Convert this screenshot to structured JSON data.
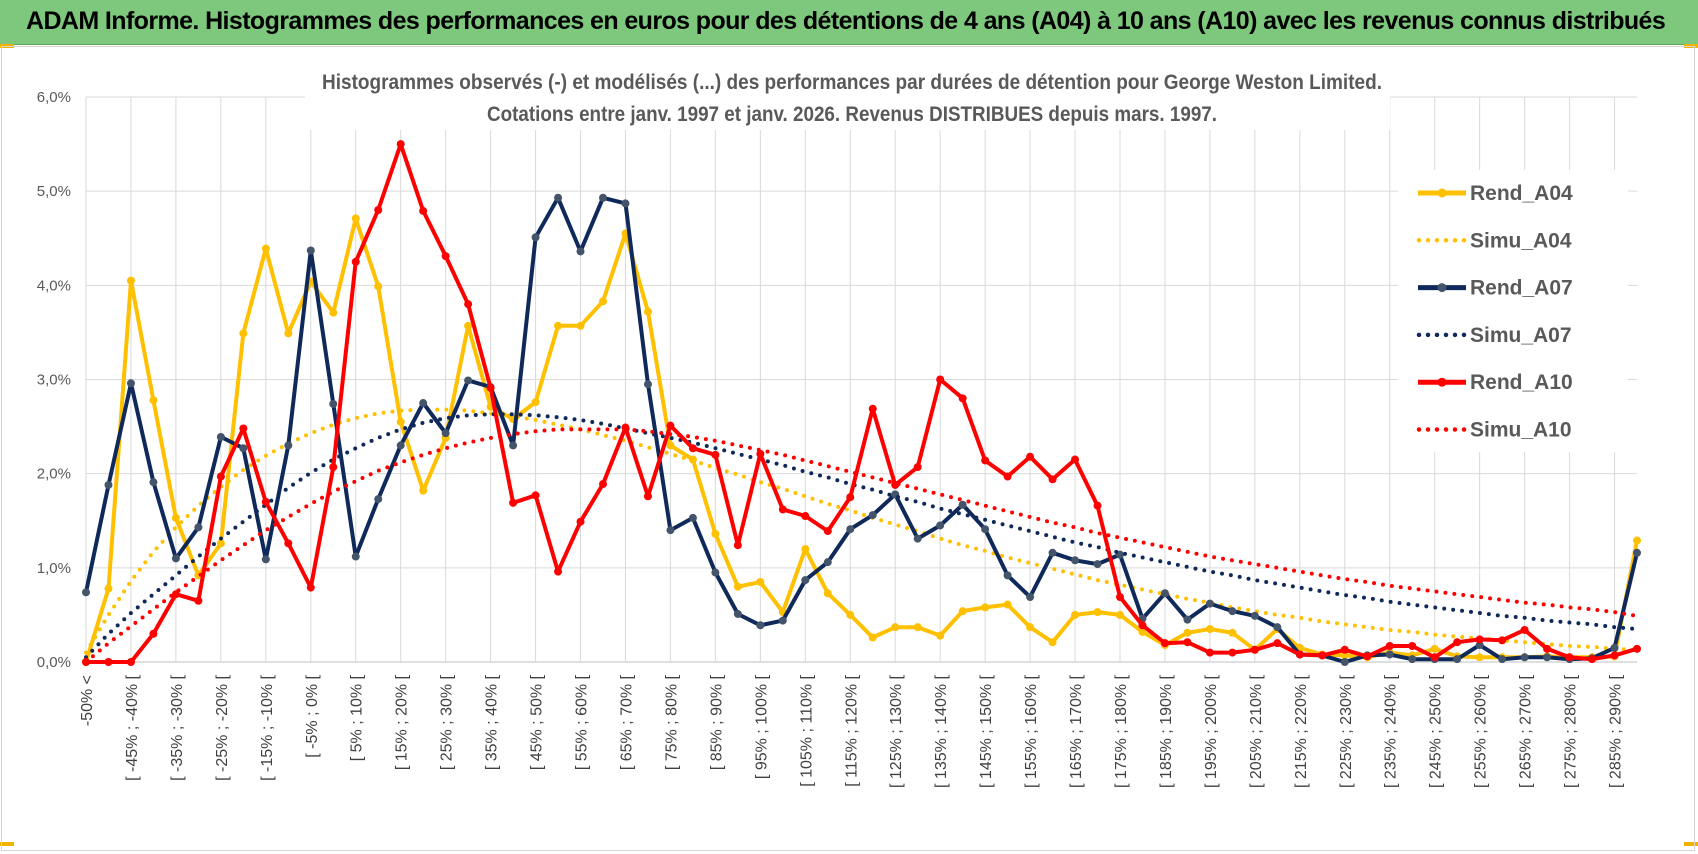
{
  "header": {
    "title": "ADAM Informe. Histogrammes des performances en euros pour des détentions de 4 ans (A04) à 10 ans (A10) avec les revenus connus distribués"
  },
  "chart_data": {
    "type": "line",
    "title": [
      "Histogrammes observés (-) et modélisés (...) des performances par durées de détention pour George Weston Limited.",
      "Cotations entre janv. 1997 et janv. 2026. Revenus DISTRIBUES depuis mars. 1997."
    ],
    "xlabel": "",
    "ylabel": "",
    "ylim": [
      0,
      6
    ],
    "y_ticks": [
      "0,0%",
      "1,0%",
      "2,0%",
      "3,0%",
      "4,0%",
      "5,0%",
      "6,0%"
    ],
    "x_tick_labels": [
      "-50% <",
      "[ -45% ; -40% [",
      "[ -35% ; -30% [",
      "[ -25% ; -20% [",
      "[ -15% ; -10% [",
      "[ -5% ; 0% [",
      "[ 5% ; 10% [",
      "[ 15% ; 20% [",
      "[ 25% ; 30% [",
      "[ 35% ; 40% [",
      "[ 45% ; 50% [",
      "[ 55% ; 60% [",
      "[ 65% ; 70% [",
      "[ 75% ; 80% [",
      "[ 85% ; 90% [",
      "[ 95% ; 100% [",
      "[ 105% ; 110% [",
      "[ 115% ; 120% [",
      "[ 125% ; 130% [",
      "[ 135% ; 140% [",
      "[ 145% ; 150% [",
      "[ 155% ; 160% [",
      "[ 165% ; 170% [",
      "[ 175% ; 180% [",
      "[ 185% ; 190% [",
      "[ 195% ; 200% [",
      "[ 205% ; 210% [",
      "[ 215% ; 220% [",
      "[ 225% ; 230% [",
      "[ 235% ; 240% [",
      "[ 245% ; 250% [",
      "[ 255% ; 260% [",
      "[ 265% ; 270% [",
      "[ 275% ; 280% [",
      "[ 285% ; 290% ["
    ],
    "n_categories": 70,
    "grid": true,
    "legend_position": "right",
    "series": [
      {
        "name": "Rend_A04",
        "style": "solid",
        "color": "#ffc000",
        "values": [
          0.0,
          0.78,
          4.05,
          2.78,
          1.53,
          0.92,
          1.26,
          3.49,
          4.39,
          3.49,
          4.04,
          3.71,
          4.71,
          3.99,
          2.55,
          1.82,
          2.38,
          3.57,
          2.71,
          2.58,
          2.76,
          3.57,
          3.57,
          3.83,
          4.55,
          3.72,
          2.3,
          2.15,
          1.36,
          0.8,
          0.85,
          0.53,
          1.2,
          0.73,
          0.5,
          0.26,
          0.37,
          0.37,
          0.28,
          0.54,
          0.58,
          0.61,
          0.37,
          0.21,
          0.5,
          0.53,
          0.5,
          0.32,
          0.18,
          0.31,
          0.35,
          0.31,
          0.13,
          0.35,
          0.15,
          0.08,
          0.07,
          0.05,
          0.1,
          0.07,
          0.14,
          0.06,
          0.05,
          0.05,
          0.05,
          0.06,
          0.05,
          0.05,
          0.06,
          1.29
        ]
      },
      {
        "name": "Simu_A04",
        "style": "dotted",
        "color": "#ffc000",
        "values": [
          0.1,
          0.5,
          0.86,
          1.17,
          1.43,
          1.66,
          1.86,
          2.04,
          2.19,
          2.32,
          2.43,
          2.52,
          2.59,
          2.64,
          2.67,
          2.68,
          2.68,
          2.67,
          2.64,
          2.61,
          2.57,
          2.52,
          2.47,
          2.41,
          2.35,
          2.28,
          2.21,
          2.14,
          2.06,
          1.99,
          1.91,
          1.84,
          1.76,
          1.68,
          1.61,
          1.53,
          1.46,
          1.39,
          1.31,
          1.24,
          1.18,
          1.11,
          1.05,
          0.99,
          0.93,
          0.87,
          0.82,
          0.77,
          0.72,
          0.67,
          0.63,
          0.58,
          0.54,
          0.5,
          0.47,
          0.43,
          0.4,
          0.37,
          0.34,
          0.32,
          0.29,
          0.27,
          0.25,
          0.23,
          0.21,
          0.19,
          0.17,
          0.16,
          0.14,
          0.13
        ]
      },
      {
        "name": "Rend_A07",
        "style": "solid",
        "color": "#0f2a5a",
        "values": [
          0.74,
          1.88,
          2.96,
          1.91,
          1.1,
          1.43,
          2.39,
          2.27,
          1.09,
          2.3,
          4.37,
          2.74,
          1.12,
          1.73,
          2.3,
          2.75,
          2.43,
          2.99,
          2.92,
          2.3,
          4.51,
          4.93,
          4.36,
          4.93,
          4.87,
          2.95,
          1.4,
          1.53,
          0.95,
          0.51,
          0.39,
          0.44,
          0.87,
          1.06,
          1.41,
          1.56,
          1.78,
          1.31,
          1.45,
          1.67,
          1.41,
          0.92,
          0.69,
          1.16,
          1.08,
          1.04,
          1.14,
          0.46,
          0.73,
          0.45,
          0.62,
          0.54,
          0.49,
          0.37,
          0.08,
          0.07,
          0.0,
          0.07,
          0.08,
          0.03,
          0.03,
          0.03,
          0.18,
          0.03,
          0.05,
          0.05,
          0.03,
          0.04,
          0.15,
          1.16
        ]
      },
      {
        "name": "Simu_A07",
        "style": "dotted",
        "color": "#0f2a5a",
        "values": [
          0.05,
          0.3,
          0.52,
          0.72,
          0.92,
          1.12,
          1.31,
          1.49,
          1.67,
          1.85,
          2.01,
          2.15,
          2.27,
          2.38,
          2.47,
          2.54,
          2.59,
          2.62,
          2.63,
          2.63,
          2.62,
          2.6,
          2.57,
          2.53,
          2.48,
          2.43,
          2.38,
          2.33,
          2.27,
          2.21,
          2.15,
          2.09,
          2.02,
          1.96,
          1.89,
          1.83,
          1.76,
          1.7,
          1.63,
          1.57,
          1.51,
          1.45,
          1.39,
          1.33,
          1.27,
          1.22,
          1.16,
          1.11,
          1.06,
          1.01,
          0.96,
          0.92,
          0.87,
          0.83,
          0.79,
          0.75,
          0.71,
          0.68,
          0.64,
          0.61,
          0.58,
          0.55,
          0.52,
          0.49,
          0.47,
          0.44,
          0.42,
          0.4,
          0.37,
          0.35
        ]
      },
      {
        "name": "Rend_A10",
        "style": "solid",
        "color": "#ff0000",
        "values": [
          0.0,
          0.0,
          0.0,
          0.3,
          0.72,
          0.65,
          1.97,
          2.48,
          1.7,
          1.26,
          0.79,
          2.07,
          4.25,
          4.8,
          5.5,
          4.79,
          4.31,
          3.8,
          2.91,
          1.69,
          1.77,
          0.96,
          1.49,
          1.89,
          2.49,
          1.76,
          2.51,
          2.27,
          2.2,
          1.24,
          2.21,
          1.62,
          1.55,
          1.39,
          1.75,
          2.69,
          1.88,
          2.07,
          3.0,
          2.8,
          2.14,
          1.97,
          2.18,
          1.94,
          2.15,
          1.66,
          0.69,
          0.39,
          0.2,
          0.21,
          0.1,
          0.1,
          0.13,
          0.2,
          0.08,
          0.07,
          0.13,
          0.06,
          0.17,
          0.17,
          0.05,
          0.21,
          0.24,
          0.23,
          0.34,
          0.14,
          0.05,
          0.03,
          0.07,
          0.14
        ]
      },
      {
        "name": "Simu_A10",
        "style": "dotted",
        "color": "#ff0000",
        "values": [
          0.0,
          0.2,
          0.38,
          0.56,
          0.74,
          0.91,
          1.08,
          1.24,
          1.4,
          1.54,
          1.68,
          1.81,
          1.92,
          2.03,
          2.12,
          2.2,
          2.27,
          2.33,
          2.38,
          2.42,
          2.45,
          2.47,
          2.47,
          2.47,
          2.47,
          2.45,
          2.42,
          2.39,
          2.35,
          2.3,
          2.25,
          2.2,
          2.14,
          2.08,
          2.02,
          1.96,
          1.9,
          1.84,
          1.78,
          1.72,
          1.66,
          1.6,
          1.54,
          1.48,
          1.43,
          1.37,
          1.32,
          1.27,
          1.22,
          1.17,
          1.12,
          1.08,
          1.04,
          1.0,
          0.96,
          0.92,
          0.88,
          0.85,
          0.81,
          0.78,
          0.75,
          0.72,
          0.69,
          0.66,
          0.63,
          0.61,
          0.58,
          0.56,
          0.53,
          0.49
        ]
      }
    ]
  }
}
